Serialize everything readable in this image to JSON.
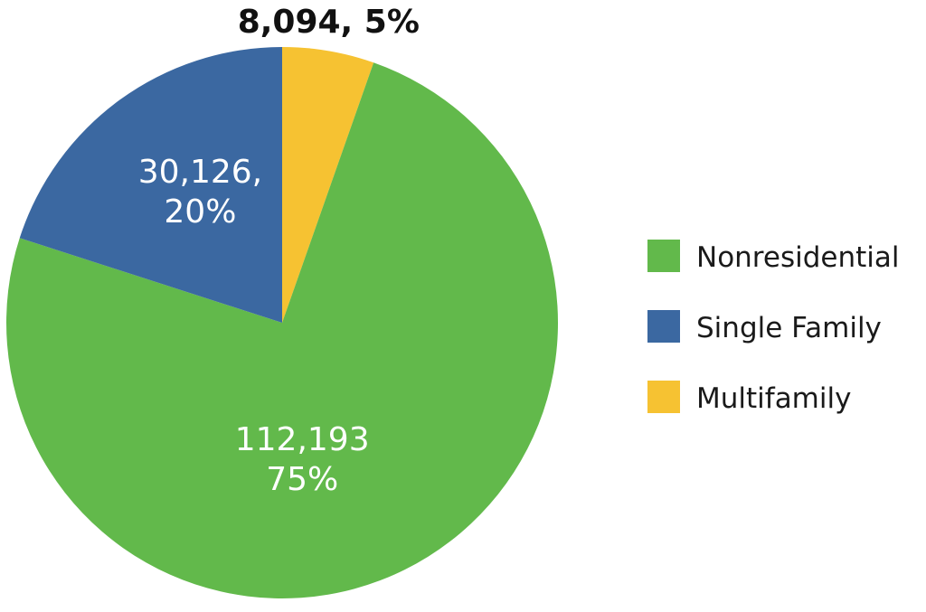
{
  "chart_data": {
    "type": "pie",
    "title": "",
    "start_angle_deg": 0,
    "direction": "clockwise",
    "slices": [
      {
        "name": "Multifamily",
        "value": 8094,
        "percent": 5,
        "color": "#F6C232",
        "label_lines": [
          "8,094, 5%"
        ],
        "label_position": "outside",
        "label_color": "#111111"
      },
      {
        "name": "Nonresidential",
        "value": 112193,
        "percent": 75,
        "color": "#62B94B",
        "label_lines": [
          "112,193",
          "75%"
        ],
        "label_position": "inside",
        "label_color": "#ffffff"
      },
      {
        "name": "Single Family",
        "value": 30126,
        "percent": 20,
        "color": "#3B68A1",
        "label_lines": [
          "30,126,",
          "20%"
        ],
        "label_position": "inside",
        "label_color": "#ffffff"
      }
    ],
    "legend": {
      "placement": "right",
      "entries": [
        {
          "label": "Nonresidential",
          "color": "#62B94B"
        },
        {
          "label": "Single Family",
          "color": "#3B68A1"
        },
        {
          "label": "Multifamily",
          "color": "#F6C232"
        }
      ]
    }
  }
}
